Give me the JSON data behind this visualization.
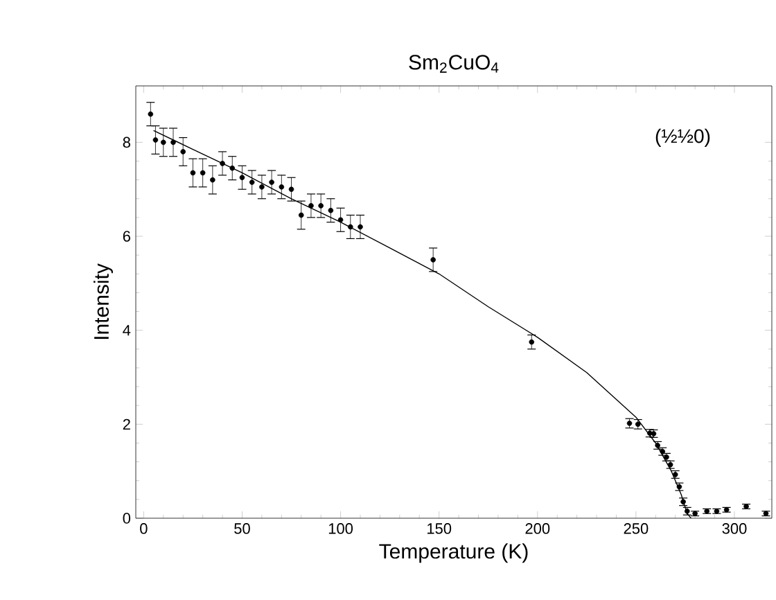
{
  "chart_data": {
    "type": "scatter",
    "title": "Sm$_{2}$CuO$_{4}$",
    "xlabel": "Temperature (K)",
    "ylabel": "Intensity",
    "annotations": [
      "(½½0)"
    ],
    "xlim": [
      -4,
      319
    ],
    "ylim": [
      0,
      9.2
    ],
    "xticks": [
      0,
      50,
      100,
      150,
      200,
      250,
      300
    ],
    "yticks": [
      0,
      2,
      4,
      6,
      8
    ],
    "grid": false,
    "series": [
      {
        "color": "#000000",
        "x": [
          3.5,
          6,
          10,
          15,
          20,
          25,
          30,
          35,
          40,
          45,
          50,
          55,
          60,
          65,
          70,
          75,
          80,
          85,
          90,
          95,
          100,
          105,
          110,
          147,
          197,
          246.7,
          251,
          257,
          259,
          261,
          263.5,
          265.5,
          267.5,
          270,
          272,
          274,
          276,
          280,
          286,
          291,
          296,
          306,
          316
        ],
        "values": [
          8.6,
          8.05,
          8.0,
          8.0,
          7.8,
          7.35,
          7.35,
          7.2,
          7.55,
          7.45,
          7.25,
          7.15,
          7.05,
          7.15,
          7.05,
          7.0,
          6.45,
          6.65,
          6.65,
          6.55,
          6.35,
          6.2,
          6.2,
          5.5,
          3.75,
          2.02,
          2.0,
          1.81,
          1.8,
          1.55,
          1.42,
          1.3,
          1.14,
          0.93,
          0.67,
          0.35,
          0.15,
          0.1,
          0.15,
          0.15,
          0.18,
          0.25,
          0.1
        ],
        "errors": [
          0.25,
          0.3,
          0.3,
          0.3,
          0.3,
          0.3,
          0.3,
          0.3,
          0.25,
          0.25,
          0.25,
          0.25,
          0.25,
          0.25,
          0.25,
          0.25,
          0.3,
          0.25,
          0.25,
          0.25,
          0.25,
          0.25,
          0.25,
          0.25,
          0.15,
          0.1,
          0.1,
          0.08,
          0.08,
          0.08,
          0.08,
          0.08,
          0.08,
          0.08,
          0.08,
          0.08,
          0.08,
          0.05,
          0.05,
          0.05,
          0.05,
          0.05,
          0.05
        ]
      },
      {
        "type": "line",
        "color": "#000000",
        "line_style": "solid",
        "x": [
          5,
          25,
          50,
          75,
          100,
          125,
          150,
          175,
          200,
          225,
          250,
          260,
          268,
          273,
          276,
          278
        ],
        "values": [
          8.25,
          7.85,
          7.35,
          6.8,
          6.3,
          5.75,
          5.2,
          4.5,
          3.85,
          3.1,
          2.15,
          1.6,
          1.0,
          0.5,
          0.1,
          0.0
        ]
      }
    ]
  }
}
